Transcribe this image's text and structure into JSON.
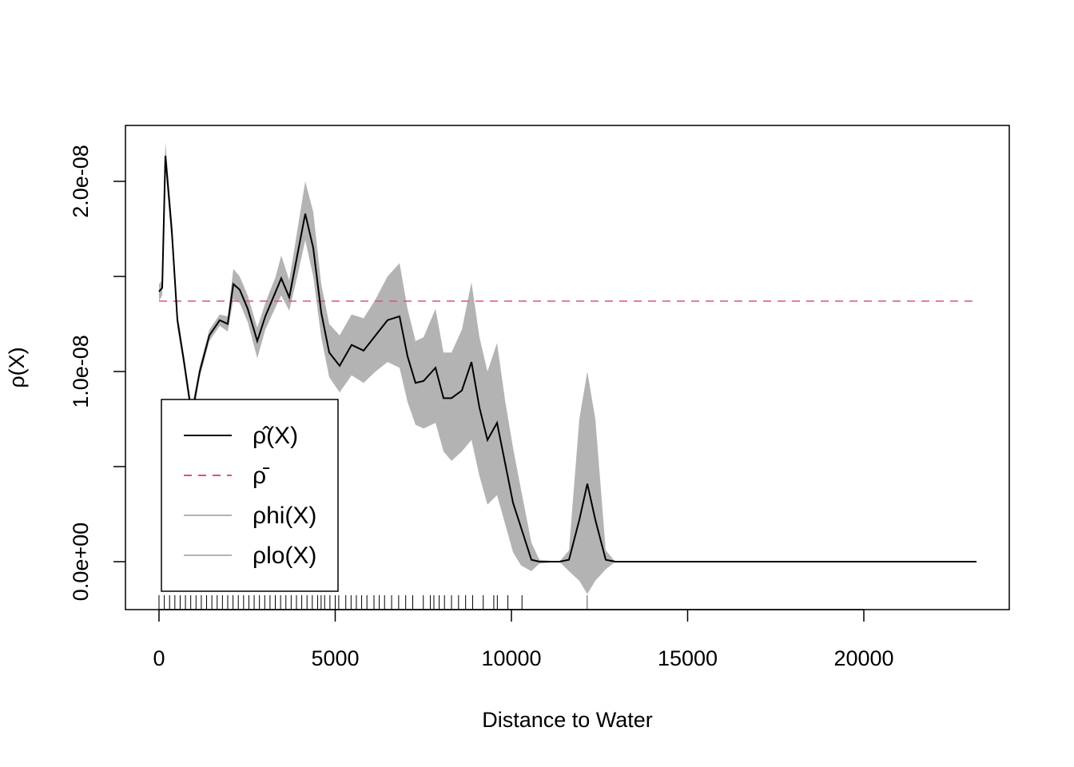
{
  "chart_data": {
    "type": "line",
    "xlabel": "Distance to Water",
    "ylabel": "ρ(X)",
    "x": [
      0,
      91,
      181,
      363,
      522,
      703,
      930,
      1156,
      1429,
      1723,
      1950,
      2109,
      2290,
      2517,
      2789,
      3016,
      3311,
      3469,
      3696,
      3923,
      4150,
      4376,
      4603,
      4830,
      5125,
      5465,
      5805,
      6145,
      6485,
      6825,
      7052,
      7279,
      7506,
      7846,
      8073,
      8299,
      8594,
      8866,
      9093,
      9320,
      9592,
      9819,
      10045,
      10272,
      10567,
      10794,
      11361,
      11633,
      11927,
      12154,
      12381,
      12676,
      12948,
      23197
    ],
    "series": [
      {
        "name": "ρ̂(X)",
        "color": "#000000",
        "values": [
          1.42e-08,
          1.44e-08,
          2.135e-08,
          1.74e-08,
          1.27e-08,
          1.06e-08,
          7.7e-09,
          1e-08,
          1.19e-08,
          1.27e-08,
          1.25e-08,
          1.46e-08,
          1.43e-08,
          1.33e-08,
          1.16e-08,
          1.29e-08,
          1.42e-08,
          1.49e-08,
          1.39e-08,
          1.61e-08,
          1.83e-08,
          1.65e-08,
          1.31e-08,
          1.1e-08,
          1.03e-08,
          1.14e-08,
          1.11e-08,
          1.19e-08,
          1.27e-08,
          1.29e-08,
          1.08e-08,
          9.4e-09,
          9.5e-09,
          1.02e-08,
          8.6e-09,
          8.6e-09,
          9e-09,
          1.05e-08,
          8.1e-09,
          6.4e-09,
          7.3e-09,
          5.2e-09,
          3.1e-09,
          1.8e-09,
          1e-10,
          0,
          0,
          1e-10,
          2.2e-09,
          4.1e-09,
          2.2e-09,
          1e-10,
          0,
          0
        ]
      },
      {
        "name": "ρhi(X)",
        "color": "#b3b3b3",
        "values": [
          1.46e-08,
          1.48e-08,
          2.21e-08,
          1.8e-08,
          1.31e-08,
          1.09e-08,
          8.1e-09,
          1.03e-08,
          1.22e-08,
          1.3e-08,
          1.29e-08,
          1.54e-08,
          1.5e-08,
          1.4e-08,
          1.23e-08,
          1.36e-08,
          1.5e-08,
          1.61e-08,
          1.48e-08,
          1.74e-08,
          2e-08,
          1.84e-08,
          1.46e-08,
          1.25e-08,
          1.19e-08,
          1.3e-08,
          1.28e-08,
          1.38e-08,
          1.5e-08,
          1.57e-08,
          1.33e-08,
          1.16e-08,
          1.18e-08,
          1.33e-08,
          1.1e-08,
          1.1e-08,
          1.22e-08,
          1.47e-08,
          1.18e-08,
          1e-08,
          1.15e-08,
          8.5e-09,
          6e-09,
          3.8e-09,
          1e-09,
          1e-10,
          0,
          6e-10,
          7.5e-09,
          1e-08,
          7.5e-09,
          6e-10,
          0,
          0
        ]
      },
      {
        "name": "ρlo(X)",
        "color": "#b3b3b3",
        "values": [
          1.37e-08,
          1.4e-08,
          2.07e-08,
          1.67e-08,
          1.23e-08,
          1.02e-08,
          7.3e-09,
          9.7e-09,
          1.16e-08,
          1.24e-08,
          1.21e-08,
          1.38e-08,
          1.36e-08,
          1.26e-08,
          1.07e-08,
          1.22e-08,
          1.34e-08,
          1.4e-08,
          1.32e-08,
          1.5e-08,
          1.69e-08,
          1.5e-08,
          1.18e-08,
          9.7e-09,
          8.9e-09,
          9.8e-09,
          9.4e-09,
          1e-08,
          1.05e-08,
          1.02e-08,
          8.4e-09,
          7.2e-09,
          7e-09,
          7.3e-09,
          5.8e-09,
          5.3e-09,
          5.8e-09,
          6.4e-09,
          4.5e-09,
          3e-09,
          3.5e-09,
          2e-09,
          5e-10,
          -2e-10,
          -5e-10,
          -1e-10,
          0,
          -5e-10,
          -1e-09,
          -1.7e-09,
          -1e-09,
          -4e-10,
          0,
          0
        ]
      }
    ],
    "reference_line": {
      "name": "ρ̄",
      "color": "#df536b",
      "value": 1.37e-08
    },
    "rug": [
      0,
      150,
      300,
      450,
      600,
      750,
      900,
      1050,
      1200,
      1350,
      1500,
      1650,
      1800,
      1950,
      2100,
      2250,
      2400,
      2550,
      2700,
      2850,
      3000,
      3150,
      3300,
      3450,
      3600,
      3750,
      3900,
      4050,
      4200,
      4350,
      4500,
      4600,
      4700,
      4850,
      5000,
      5100,
      5300,
      5450,
      5600,
      5750,
      5900,
      6100,
      6250,
      6400,
      6600,
      6800,
      7000,
      7200,
      7500,
      7700,
      7800,
      7950,
      8100,
      8300,
      8500,
      8700,
      8900,
      9200,
      9500,
      9600,
      9900,
      10300,
      12150
    ],
    "xlim": [
      -952,
      24127
    ],
    "ylim": [
      -2.52e-09,
      2.294e-08
    ],
    "xticks": [
      0,
      5000,
      10000,
      15000,
      20000
    ],
    "yticks": [
      {
        "value": 0,
        "label": "0.0e+00"
      },
      {
        "value": 5e-09,
        "label": null
      },
      {
        "value": 1e-08,
        "label": "1.0e-08"
      },
      {
        "value": 1.5e-08,
        "label": null
      },
      {
        "value": 2e-08,
        "label": "2.0e-08"
      }
    ],
    "legend": "bottom-left"
  }
}
